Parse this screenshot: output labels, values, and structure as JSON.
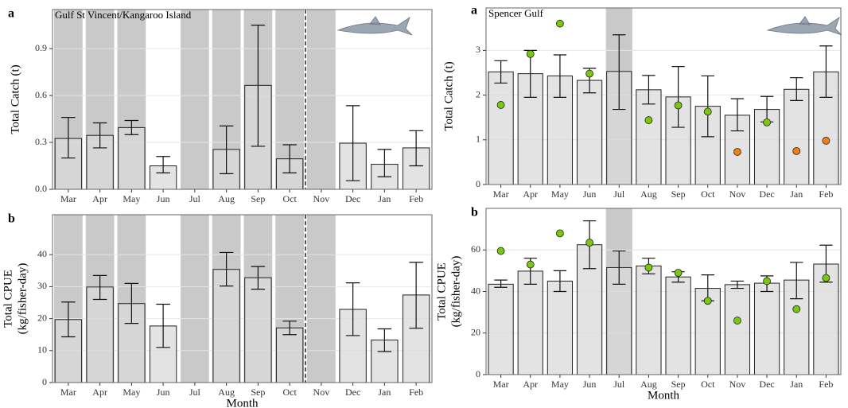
{
  "chart_data": [
    {
      "type": "bar",
      "panel_label": "a",
      "subtitle": "Gulf St Vincent/Kangaroo Island",
      "ylabel": [
        "Total Catch (t)"
      ],
      "categories": [
        "Mar",
        "Apr",
        "May",
        "Jun",
        "Jul",
        "Aug",
        "Sep",
        "Oct",
        "Nov",
        "Dec",
        "Jan",
        "Feb"
      ],
      "values": [
        0.325,
        0.345,
        0.395,
        0.15,
        null,
        0.255,
        0.665,
        0.195,
        null,
        0.295,
        0.16,
        0.265
      ],
      "error_low": [
        0.2,
        0.265,
        0.35,
        0.105,
        null,
        0.1,
        0.275,
        0.105,
        null,
        0.055,
        0.08,
        0.15
      ],
      "error_high": [
        0.46,
        0.425,
        0.44,
        0.21,
        null,
        0.405,
        1.05,
        0.285,
        null,
        0.535,
        0.255,
        0.375
      ],
      "shaded": [
        true,
        true,
        true,
        false,
        true,
        true,
        true,
        true,
        true,
        false,
        false,
        false
      ],
      "color": "#d9d9d9",
      "shade_color": "#c9c9c9",
      "ylim": [
        0,
        1.15
      ],
      "yticks": [
        {
          "value": 0,
          "label": "0.0"
        },
        0.3,
        0.6,
        0.9
      ],
      "grid": true
    },
    {
      "type": "bar",
      "panel_label": "b",
      "ylabel": [
        "Total CPUE",
        "(kg/fisher-day)"
      ],
      "xlabel": "Month",
      "categories": [
        "Mar",
        "Apr",
        "May",
        "Jun",
        "Jul",
        "Aug",
        "Sep",
        "Oct",
        "Nov",
        "Dec",
        "Jan",
        "Feb"
      ],
      "values": [
        19.7,
        29.9,
        24.7,
        17.7,
        null,
        35.4,
        32.8,
        17.1,
        null,
        22.9,
        13.3,
        27.4
      ],
      "error_low": [
        14.3,
        26,
        18.5,
        11,
        null,
        30.2,
        29.2,
        15,
        null,
        14.7,
        9.7,
        17
      ],
      "error_high": [
        25.2,
        33.5,
        31,
        24.5,
        null,
        40.7,
        36.3,
        19.2,
        null,
        31.2,
        16.8,
        37.6
      ],
      "shaded": [
        true,
        true,
        true,
        false,
        true,
        true,
        true,
        true,
        true,
        false,
        false,
        false
      ],
      "color": "#d9d9d9",
      "shade_color": "#c9c9c9",
      "ylim": [
        0,
        52.5
      ],
      "yticks": [
        0,
        10,
        20,
        30,
        40
      ],
      "grid": true
    },
    {
      "type": "bar",
      "panel_label": "a",
      "subtitle": "Spencer Gulf",
      "ylabel": [
        "Total Catch (t)"
      ],
      "categories": [
        "Mar",
        "Apr",
        "May",
        "Jun",
        "Jul",
        "Aug",
        "Sep",
        "Oct",
        "Nov",
        "Dec",
        "Jan",
        "Feb"
      ],
      "values": [
        2.52,
        2.48,
        2.43,
        2.33,
        2.53,
        2.12,
        1.96,
        1.75,
        1.55,
        1.68,
        2.13,
        2.52
      ],
      "error_low": [
        2.27,
        1.95,
        1.95,
        2.05,
        1.68,
        1.8,
        1.28,
        1.07,
        1.2,
        1.4,
        1.88,
        1.95
      ],
      "error_high": [
        2.77,
        3.0,
        2.9,
        2.6,
        3.35,
        2.44,
        2.64,
        2.43,
        1.92,
        1.97,
        2.39,
        3.1
      ],
      "shaded": [
        false,
        false,
        false,
        false,
        true,
        false,
        false,
        false,
        false,
        false,
        false,
        false
      ],
      "series": [
        {
          "color": "#7ac70c",
          "values": [
            1.78,
            2.92,
            3.6,
            2.48,
            null,
            1.44,
            1.77,
            1.63,
            null,
            1.39,
            null,
            null
          ]
        },
        {
          "color": "#f07f1a",
          "values": [
            null,
            null,
            null,
            null,
            null,
            null,
            null,
            null,
            0.73,
            null,
            0.75,
            0.98
          ]
        }
      ],
      "color": "#d9d9d9",
      "shade_color": "#c9c9c9",
      "ylim": [
        0,
        3.95
      ],
      "yticks": [
        0,
        1,
        2,
        3
      ],
      "grid": true
    },
    {
      "type": "bar",
      "panel_label": "b",
      "ylabel": [
        "Total CPUE",
        "(kg/fisher-day)"
      ],
      "xlabel": "Month",
      "categories": [
        "Mar",
        "Apr",
        "May",
        "Jun",
        "Jul",
        "Aug",
        "Sep",
        "Oct",
        "Nov",
        "Dec",
        "Jan",
        "Feb"
      ],
      "values": [
        43.5,
        49.8,
        45,
        62.5,
        51.5,
        52.3,
        47,
        41.5,
        43.3,
        44,
        45.5,
        53.2
      ],
      "error_low": [
        42,
        43.5,
        40,
        51,
        43.5,
        48.5,
        44.5,
        35.5,
        41.5,
        40,
        36.5,
        44.5
      ],
      "error_high": [
        45.5,
        56,
        50,
        74,
        59.5,
        56,
        49.5,
        48,
        45,
        47.5,
        54,
        62.3
      ],
      "shaded": [
        false,
        false,
        false,
        false,
        true,
        false,
        false,
        false,
        false,
        false,
        false,
        false
      ],
      "series": [
        {
          "color": "#7ac70c",
          "values": [
            59.5,
            53,
            68,
            63.5,
            null,
            51.5,
            49,
            35.5,
            26,
            45,
            31.5,
            46.5
          ]
        }
      ],
      "color": "#d9d9d9",
      "shade_color": "#c9c9c9",
      "ylim": [
        0,
        80
      ],
      "yticks": [
        0,
        20,
        40,
        60
      ],
      "grid": true
    }
  ]
}
